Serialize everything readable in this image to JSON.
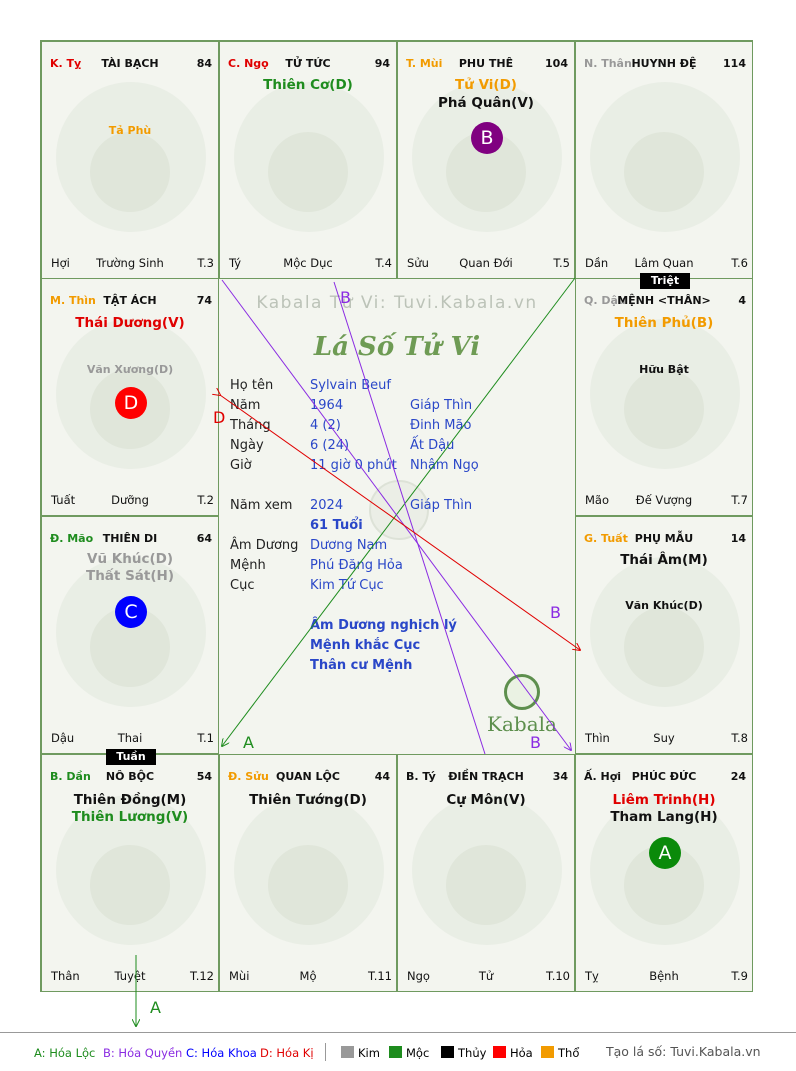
{
  "center": {
    "watermark": "Kabala Tử Vi: Tuvi.Kabala.vn",
    "title": "Lá Số Tử Vi",
    "logo": "Kabala",
    "rows": [
      {
        "label": "Họ tên",
        "value": "Sylvain Beuf",
        "extra": ""
      },
      {
        "label": "Năm",
        "value": "1964",
        "extra": "Giáp Thìn"
      },
      {
        "label": "Tháng",
        "value": "4  (2)",
        "extra": "Đinh Mão"
      },
      {
        "label": "Ngày",
        "value": "6  (24)",
        "extra": "Ất Dậu"
      },
      {
        "label": "Giờ",
        "value": "11 giờ 0 phút",
        "extra": "Nhâm Ngọ"
      },
      {
        "label": "Năm xem",
        "value": "2024",
        "extra": "Giáp Thìn"
      },
      {
        "label": "",
        "value": "61 Tuổi",
        "extra": ""
      },
      {
        "label": "Âm Dương",
        "value": "Dương Nam",
        "extra": ""
      },
      {
        "label": "Mệnh",
        "value": "Phú Đăng Hỏa",
        "extra": ""
      },
      {
        "label": "Cục",
        "value": "Kim Tứ Cục",
        "extra": ""
      }
    ],
    "notes": [
      "Âm Dương nghịch lý",
      "Mệnh khắc Cục",
      "Thân cư Mệnh"
    ]
  },
  "cells": [
    {
      "id": "ty",
      "can": "K. Tỵ",
      "can_color": "#e00000",
      "name": "TÀI BẠCH",
      "num": "84",
      "stars": [
        {
          "text": "Tả Phù",
          "color": "#f29b00",
          "size": "minor",
          "y": 82
        }
      ],
      "circle": null,
      "bottom": {
        "left": "Hợi",
        "center": "Trường Sinh",
        "right": "T.3"
      }
    },
    {
      "id": "ngo",
      "can": "C. Ngọ",
      "can_color": "#e00000",
      "name": "TỬ TỨC",
      "num": "94",
      "stars": [
        {
          "text": "Thiên Cơ(D)",
          "color": "#1e8c1e",
          "size": "major",
          "y": 35
        }
      ],
      "circle": null,
      "bottom": {
        "left": "Tý",
        "center": "Mộc Dục",
        "right": "T.4"
      }
    },
    {
      "id": "mui",
      "can": "T. Mùi",
      "can_color": "#f29b00",
      "name": "PHU THÊ",
      "num": "104",
      "stars": [
        {
          "text": "Tử Vi(D)",
          "color": "#f29b00",
          "size": "major",
          "y": 35
        },
        {
          "text": "Phá Quân(V)",
          "color": "#111111",
          "size": "major",
          "y": 53
        }
      ],
      "circle": {
        "letter": "B",
        "color": "#800080",
        "y": 80
      },
      "bottom": {
        "left": "Sửu",
        "center": "Quan Đới",
        "right": "T.5"
      }
    },
    {
      "id": "than",
      "can": "N. Thân",
      "can_color": "#999999",
      "name": "HUYNH ĐỆ",
      "num": "114",
      "stars": [],
      "circle": null,
      "bottom": {
        "left": "Dần",
        "center": "Lâm Quan",
        "right": "T.6"
      }
    },
    {
      "id": "thin",
      "can": "M. Thìn",
      "can_color": "#f29b00",
      "name": "TẬT ÁCH",
      "num": "74",
      "stars": [
        {
          "text": "Thái Dương(V)",
          "color": "#e00000",
          "size": "major",
          "y": 36
        },
        {
          "text": "Văn Xương(D)",
          "color": "#999999",
          "size": "minor",
          "y": 84
        }
      ],
      "circle": {
        "letter": "D",
        "color": "#ff0000",
        "y": 108
      },
      "bottom": {
        "left": "Tuất",
        "center": "Dưỡng",
        "right": "T.2"
      }
    },
    {
      "id": "dau",
      "can": "Q. Dậu",
      "can_color": "#999999",
      "name": "MỆNH <THÂN>",
      "num": "4",
      "stars": [
        {
          "text": "Thiên Phủ(B)",
          "color": "#f29b00",
          "size": "major",
          "y": 36
        },
        {
          "text": "Hữu Bật",
          "color": "#111111",
          "size": "minor",
          "y": 84
        }
      ],
      "circle": null,
      "bottom": {
        "left": "Mão",
        "center": "Đế Vượng",
        "right": "T.7"
      }
    },
    {
      "id": "mao",
      "can": "Đ. Mão",
      "can_color": "#1e8c1e",
      "name": "THIÊN DI",
      "num": "64",
      "stars": [
        {
          "text": "Vũ Khúc(D)",
          "color": "#999999",
          "size": "major",
          "y": 34
        },
        {
          "text": "Thất Sát(H)",
          "color": "#999999",
          "size": "major",
          "y": 51
        }
      ],
      "circle": {
        "letter": "C",
        "color": "#0000ff",
        "y": 79
      },
      "bottom": {
        "left": "Dậu",
        "center": "Thai",
        "right": "T.1"
      }
    },
    {
      "id": "tuat",
      "can": "G. Tuất",
      "can_color": "#f29b00",
      "name": "PHỤ MẪU",
      "num": "14",
      "stars": [
        {
          "text": "Thái Âm(M)",
          "color": "#111111",
          "size": "major",
          "y": 35
        },
        {
          "text": "Văn Khúc(D)",
          "color": "#111111",
          "size": "minor",
          "y": 82
        }
      ],
      "circle": null,
      "bottom": {
        "left": "Thìn",
        "center": "Suy",
        "right": "T.8"
      }
    },
    {
      "id": "dan",
      "can": "B. Dần",
      "can_color": "#1e8c1e",
      "name": "NÔ BỘC",
      "num": "54",
      "stars": [
        {
          "text": "Thiên Đồng(M)",
          "color": "#111111",
          "size": "major",
          "y": 37
        },
        {
          "text": "Thiên Lương(V)",
          "color": "#1e8c1e",
          "size": "major",
          "y": 54
        }
      ],
      "circle": null,
      "bottom": {
        "left": "Thân",
        "center": "Tuyệt",
        "right": "T.12"
      }
    },
    {
      "id": "suu",
      "can": "Đ. Sửu",
      "can_color": "#f29b00",
      "name": "QUAN LỘC",
      "num": "44",
      "stars": [
        {
          "text": "Thiên Tướng(D)",
          "color": "#111111",
          "size": "major",
          "y": 37
        }
      ],
      "circle": null,
      "bottom": {
        "left": "Mùi",
        "center": "Mộ",
        "right": "T.11"
      }
    },
    {
      "id": "ti",
      "can": "B. Tý",
      "can_color": "#111111",
      "name": "ĐIỀN TRẠCH",
      "num": "34",
      "stars": [
        {
          "text": "Cự Môn(V)",
          "color": "#111111",
          "size": "major",
          "y": 37
        }
      ],
      "circle": null,
      "bottom": {
        "left": "Ngọ",
        "center": "Tử",
        "right": "T.10"
      }
    },
    {
      "id": "hoi",
      "can": "Ấ. Hợi",
      "can_color": "#111111",
      "name": "PHÚC ĐỨC",
      "num": "24",
      "stars": [
        {
          "text": "Liêm Trinh(H)",
          "color": "#e00000",
          "size": "major",
          "y": 37
        },
        {
          "text": "Tham Lang(H)",
          "color": "#111111",
          "size": "major",
          "y": 54
        }
      ],
      "circle": {
        "letter": "A",
        "color": "#0a8a0a",
        "y": 82
      },
      "bottom": {
        "left": "Tỵ",
        "center": "Bệnh",
        "right": "T.9"
      }
    }
  ],
  "tags": {
    "triet": "Triệt",
    "tuan": "Tuần"
  },
  "arrows": {
    "a_label": "A",
    "b_label": "B",
    "d_label": "D"
  },
  "legend": {
    "hoa_loc": "A: Hóa Lộc",
    "hoa_quyen": "B: Hóa Quyền",
    "hoa_khoa": "C: Hóa Khoa",
    "hoa_ki": "D: Hóa Kị",
    "kim": "Kim",
    "moc": "Mộc",
    "thuy": "Thủy",
    "hoa": "Hỏa",
    "tho": "Thổ",
    "site": "Tạo lá số: Tuvi.Kabala.vn",
    "colors": {
      "kim": "#999999",
      "moc": "#1e8c1e",
      "thuy": "#000000",
      "hoa": "#ff0000",
      "tho": "#f29b00"
    }
  }
}
